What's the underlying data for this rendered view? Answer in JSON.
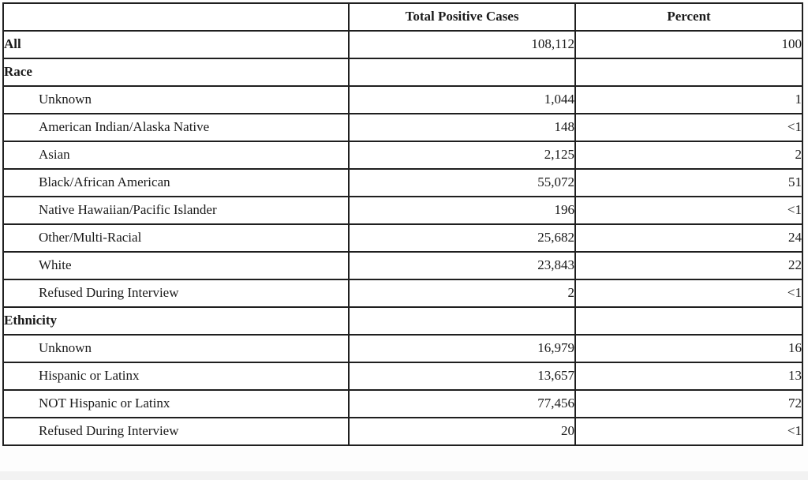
{
  "colors": {
    "border": "#1f1f1f",
    "text": "#1a1a1a",
    "background": "#ffffff"
  },
  "table": {
    "columns": [
      "",
      "Total Positive Cases",
      "Percent"
    ],
    "rows": [
      {
        "label": "All",
        "cases": "108,112",
        "percent": "100",
        "style": "section",
        "indent": false
      },
      {
        "label": "Race",
        "cases": "",
        "percent": "",
        "style": "section",
        "indent": false
      },
      {
        "label": "Unknown",
        "cases": "1,044",
        "percent": "1",
        "style": "item",
        "indent": true
      },
      {
        "label": "American Indian/Alaska Native",
        "cases": "148",
        "percent": "<1",
        "style": "item",
        "indent": true
      },
      {
        "label": "Asian",
        "cases": "2,125",
        "percent": "2",
        "style": "item",
        "indent": true
      },
      {
        "label": "Black/African American",
        "cases": "55,072",
        "percent": "51",
        "style": "item",
        "indent": true
      },
      {
        "label": "Native Hawaiian/Pacific Islander",
        "cases": "196",
        "percent": "<1",
        "style": "item",
        "indent": true
      },
      {
        "label": "Other/Multi-Racial",
        "cases": "25,682",
        "percent": "24",
        "style": "item",
        "indent": true
      },
      {
        "label": "White",
        "cases": "23,843",
        "percent": "22",
        "style": "item",
        "indent": true
      },
      {
        "label": "Refused During Interview",
        "cases": "2",
        "percent": "<1",
        "style": "item",
        "indent": true
      },
      {
        "label": "Ethnicity",
        "cases": "",
        "percent": "",
        "style": "section",
        "indent": false
      },
      {
        "label": "Unknown",
        "cases": "16,979",
        "percent": "16",
        "style": "item",
        "indent": true
      },
      {
        "label": "Hispanic or Latinx",
        "cases": "13,657",
        "percent": "13",
        "style": "item",
        "indent": true
      },
      {
        "label": "NOT Hispanic or Latinx",
        "cases": "77,456",
        "percent": "72",
        "style": "item",
        "indent": true
      },
      {
        "label": "Refused During Interview",
        "cases": "20",
        "percent": "<1",
        "style": "item",
        "indent": true
      }
    ]
  }
}
